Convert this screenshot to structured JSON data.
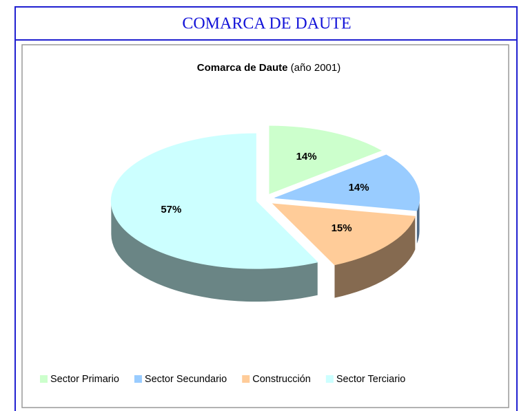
{
  "header": {
    "title": "COMARCA DE DAUTE"
  },
  "chart_data": {
    "type": "pie3d",
    "title": "Comarca de Daute",
    "subtitle": "(año 2001)",
    "categories": [
      "Sector Primario",
      "Sector Secundario",
      "Construcción",
      "Sector Terciario"
    ],
    "values": [
      14,
      14,
      15,
      57
    ],
    "value_labels": [
      "14%",
      "14%",
      "15%",
      "57%"
    ],
    "colors": [
      "#ccffcc",
      "#99ccff",
      "#ffcc99",
      "#ccffff"
    ],
    "legend": "bottom"
  }
}
